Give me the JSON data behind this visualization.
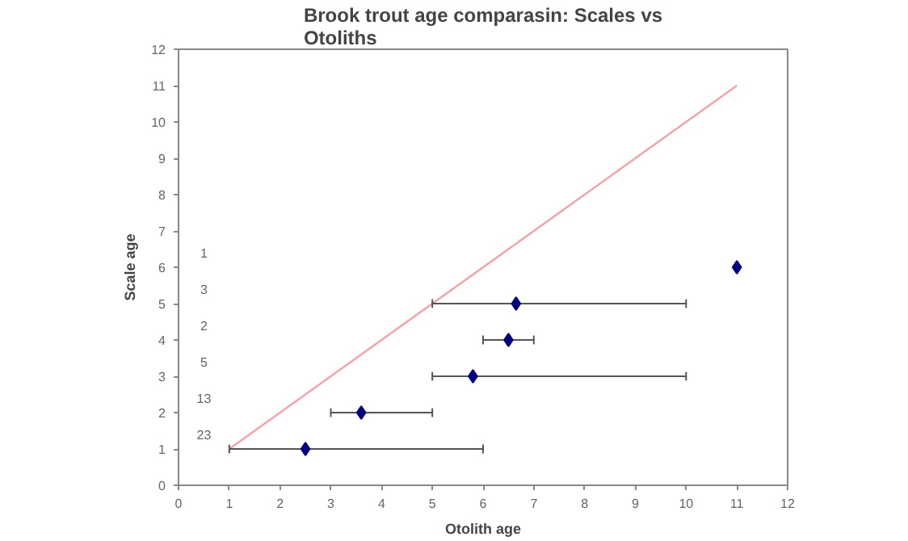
{
  "chart_data": {
    "type": "scatter",
    "title": "Brook trout age comparasin: Scales vs Otoliths",
    "xlabel": "Otolith age",
    "ylabel": "Scale age",
    "xlim": [
      0,
      12
    ],
    "ylim": [
      0,
      12
    ],
    "xticks": [
      0,
      1,
      2,
      3,
      4,
      5,
      6,
      7,
      8,
      9,
      10,
      11,
      12
    ],
    "yticks": [
      0,
      1,
      2,
      3,
      4,
      5,
      6,
      7,
      8,
      9,
      10,
      11,
      12
    ],
    "grid": false,
    "series": [
      {
        "type": "line",
        "color": "#f4a0a8",
        "x": [
          1,
          11
        ],
        "values": [
          1,
          11
        ],
        "marker": "none"
      },
      {
        "color": "#000080",
        "marker": "diamond",
        "x": [
          2.5,
          3.6,
          5.8,
          6.5,
          6.65,
          11
        ],
        "values": [
          1,
          2,
          3,
          4,
          5,
          6
        ],
        "xerrors": [
          [
            1,
            6
          ],
          [
            3,
            5
          ],
          [
            5,
            10
          ],
          [
            6,
            7
          ],
          [
            5,
            10
          ],
          null
        ]
      }
    ],
    "annotations": [
      "23",
      "13",
      "5",
      "2",
      "3",
      "1"
    ]
  }
}
